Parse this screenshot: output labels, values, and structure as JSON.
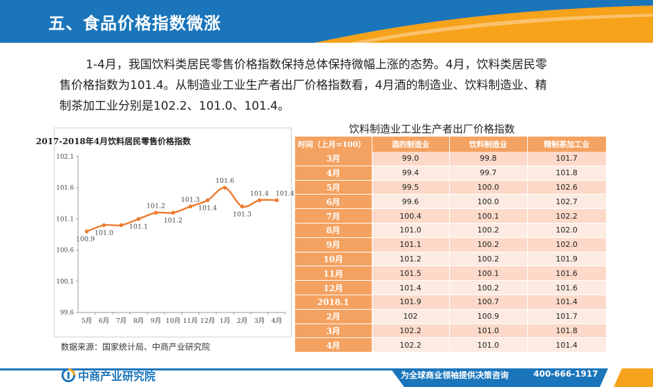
{
  "header": {
    "title": "五、食品价格指数微涨"
  },
  "paragraph": {
    "line1": "1-4月，我国饮料类居民零售价格指数保持总体保持微幅上涨的态势。4月，饮料类居民零",
    "line2": "售价格指数为101.4。从制造业工业生产者出厂价格指数看，4月酒的制造业、饮料制造业、精",
    "line3": "制茶加工业分别是102.2、101.0、101.4。"
  },
  "chart": {
    "title": "2017-2018年4月饮料居民零售价格指数",
    "source": "数据来源：国家统计局、中商产业研究院"
  },
  "chart_data": {
    "type": "line",
    "title": "2017-2018年4月饮料居民零售价格指数",
    "categories": [
      "5月",
      "6月",
      "7月",
      "8月",
      "9月",
      "10月",
      "11月",
      "12月",
      "1月",
      "2月",
      "3月",
      "4月"
    ],
    "values": [
      100.9,
      101.0,
      101.0,
      101.1,
      101.2,
      101.2,
      101.3,
      101.4,
      101.6,
      101.3,
      101.4,
      101.4
    ],
    "data_labels": [
      "100.9",
      "101.0",
      "",
      "101.1",
      "101.2",
      "101.2",
      "101.3",
      "101.4",
      "101.6",
      "101.3",
      "101.4",
      "101.4"
    ],
    "yticks": [
      "102.1",
      "101.6",
      "101.1",
      "100.6",
      "100.1",
      "99.6"
    ],
    "ylim": [
      99.6,
      102.1
    ],
    "color": "#ed7d31",
    "grid": false
  },
  "table": {
    "title": "饮料制造业工业生产者出厂价格指数",
    "headers": [
      "时间（上月=100）",
      "酒的制造业",
      "饮料制造业",
      "精制茶加工业"
    ],
    "rows": [
      {
        "label": "3月",
        "c1": "99.0",
        "c2": "99.8",
        "c3": "101.7"
      },
      {
        "label": "4月",
        "c1": "99.4",
        "c2": "99.7",
        "c3": "101.8"
      },
      {
        "label": "5月",
        "c1": "99.5",
        "c2": "100.0",
        "c3": "102.6"
      },
      {
        "label": "6月",
        "c1": "99.6",
        "c2": "100.0",
        "c3": "102.7"
      },
      {
        "label": "7月",
        "c1": "100.4",
        "c2": "100.1",
        "c3": "102.2"
      },
      {
        "label": "8月",
        "c1": "101.0",
        "c2": "100.2",
        "c3": "102.0"
      },
      {
        "label": "9月",
        "c1": "101.1",
        "c2": "100.2",
        "c3": "102.0"
      },
      {
        "label": "10月",
        "c1": "101.2",
        "c2": "100.2",
        "c3": "101.9"
      },
      {
        "label": "11月",
        "c1": "101.5",
        "c2": "100.1",
        "c3": "101.6"
      },
      {
        "label": "12月",
        "c1": "101.4",
        "c2": "100.2",
        "c3": "101.6"
      },
      {
        "label": "2018.1",
        "c1": "101.9",
        "c2": "100.7",
        "c3": "101.4"
      },
      {
        "label": "2月",
        "c1": "102",
        "c2": "100.9",
        "c3": "101.7"
      },
      {
        "label": "3月",
        "c1": "102.2",
        "c2": "101.0",
        "c3": "101.8"
      },
      {
        "label": "4月",
        "c1": "102.2",
        "c2": "101.0",
        "c3": "101.4"
      }
    ]
  },
  "footer": {
    "logo_text": "中商产业研究院",
    "slogan": "为全球商业领袖提供决策咨询",
    "phone": "400-666-1917"
  },
  "colors": {
    "blue": "#1a75bb",
    "orange": "#f7a21b",
    "table_orange": "#f4a261"
  },
  "icons": {
    "logo": "company-logo-icon"
  }
}
